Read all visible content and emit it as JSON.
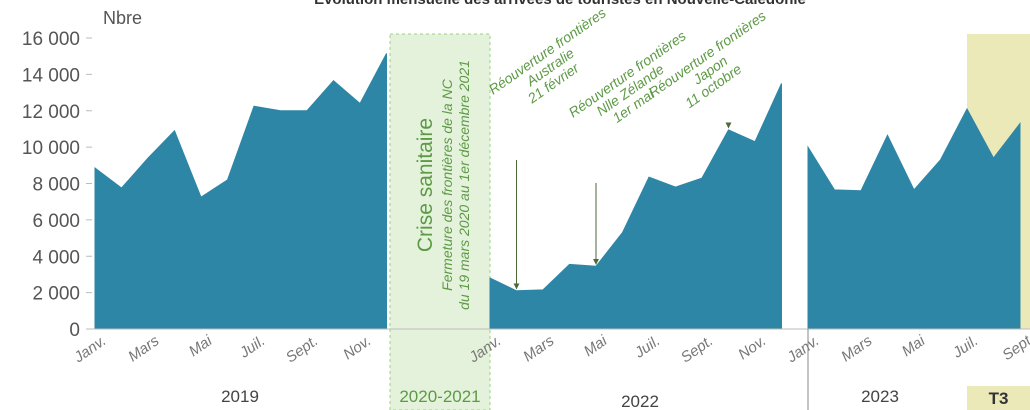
{
  "chart_data": {
    "type": "area",
    "title": "Évolution mensuelle des arrivées de touristes en Nouvelle-Calédonie",
    "y_label": "Nbre",
    "color": "#2e86a6",
    "ylim": [
      0,
      16000
    ],
    "yticks": [
      0,
      {
        "value": 2000,
        "label": "2 000"
      },
      {
        "value": 4000,
        "label": "4 000"
      },
      {
        "value": 6000,
        "label": "6 000"
      },
      {
        "value": 8000,
        "label": "8 000"
      },
      {
        "value": 10000,
        "label": "10 000"
      },
      {
        "value": 12000,
        "label": "12 000"
      },
      {
        "value": 14000,
        "label": "14 000"
      },
      {
        "value": 16000,
        "label": "16 000"
      }
    ],
    "segments": [
      {
        "name": "2019",
        "categories": [
          "Janv.",
          null,
          "Mars",
          null,
          "Mai",
          null,
          "Juil.",
          null,
          "Sept.",
          null,
          "Nov.",
          null
        ],
        "values": [
          8850,
          7750,
          9400,
          10900,
          7250,
          8200,
          12250,
          12000,
          12000,
          13650,
          12400,
          15150
        ]
      },
      {
        "name": "2022",
        "categories": [
          "Janv.",
          null,
          "Mars",
          null,
          "Mai",
          null,
          "Juil.",
          null,
          "Sept.",
          null,
          "Nov.",
          null
        ],
        "values": [
          2800,
          2100,
          2150,
          3550,
          3450,
          5300,
          8350,
          7800,
          8300,
          10950,
          10300,
          13500
        ]
      },
      {
        "name": "2023",
        "categories": [
          "Janv.",
          null,
          "Mars",
          null,
          "Mai",
          null,
          "Juil.",
          null,
          "Sept"
        ],
        "values": [
          10000,
          7650,
          7600,
          10650,
          7650,
          9300,
          12100,
          9400,
          11300
        ]
      }
    ],
    "crisis": {
      "name": "2020-2021",
      "title": "Crise sanitaire",
      "lines": [
        "Fermeture des frontières de la NC",
        "du 19 mars 2020 au 1er décembre 2021"
      ]
    },
    "highlight": {
      "name": "T3",
      "color": "#ece9b8"
    },
    "annotations": [
      {
        "lines": [
          "Réouverture frontières",
          "Australie",
          "21 février"
        ]
      },
      {
        "lines": [
          "Réouverture frontières",
          "Nlle Zélande",
          "1er mai"
        ]
      },
      {
        "lines": [
          "Réouverture frontières",
          "Japon",
          "11 octobre"
        ]
      }
    ]
  }
}
